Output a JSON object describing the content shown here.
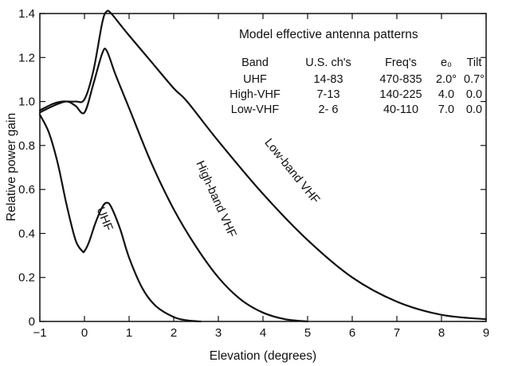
{
  "chart_data": {
    "type": "line",
    "title": "",
    "xlabel": "Elevation (degrees)",
    "ylabel": "Relative power gain",
    "xlim": [
      -1,
      9
    ],
    "ylim": [
      0,
      1.4
    ],
    "grid": false,
    "x_ticks": [
      "-1",
      "0",
      "1",
      "2",
      "3",
      "4",
      "5",
      "6",
      "7",
      "8",
      "9"
    ],
    "y_ticks": [
      "0",
      "0.2",
      "0.4",
      "0.6",
      "0.8",
      "1.0",
      "1.2",
      "1.4"
    ],
    "series": [
      {
        "name": "UHF",
        "label": "UHF",
        "x": [
          -1,
          -0.8,
          -0.6,
          -0.4,
          -0.2,
          -0.05,
          0,
          0.1,
          0.25,
          0.4,
          0.5,
          0.6,
          0.8,
          1.0,
          1.3,
          1.6,
          2.0,
          2.3,
          2.6
        ],
        "y": [
          0.94,
          0.86,
          0.72,
          0.53,
          0.37,
          0.32,
          0.32,
          0.36,
          0.45,
          0.52,
          0.54,
          0.52,
          0.42,
          0.29,
          0.15,
          0.07,
          0.02,
          0.005,
          0
        ]
      },
      {
        "name": "High-band VHF",
        "label": "High-band VHF",
        "x": [
          -1,
          -0.7,
          -0.4,
          -0.2,
          0,
          0.2,
          0.4,
          0.5,
          0.7,
          1.0,
          1.5,
          2.0,
          2.5,
          3.0,
          3.5,
          4.0,
          4.5,
          5.0
        ],
        "y": [
          0.95,
          0.98,
          1.0,
          0.98,
          0.95,
          1.08,
          1.22,
          1.23,
          1.12,
          0.97,
          0.72,
          0.51,
          0.34,
          0.2,
          0.1,
          0.04,
          0.01,
          0
        ]
      },
      {
        "name": "Low-band VHF",
        "label": "Low-band VHF",
        "x": [
          -1,
          -0.7,
          -0.5,
          -0.2,
          0,
          0.2,
          0.4,
          0.5,
          0.6,
          0.8,
          1.0,
          1.5,
          2.0,
          2.3,
          3.0,
          4.0,
          5.0,
          6.0,
          7.0,
          8.0,
          9.0
        ],
        "y": [
          0.96,
          0.99,
          1.0,
          1.0,
          1.01,
          1.14,
          1.36,
          1.41,
          1.4,
          1.35,
          1.3,
          1.18,
          1.06,
          1.0,
          0.82,
          0.58,
          0.37,
          0.2,
          0.09,
          0.03,
          0.01
        ]
      }
    ],
    "table": {
      "title": "Model effective antenna patterns",
      "headers": [
        "Band",
        "U.S. ch's",
        "Freq's",
        "e₀",
        "Tilt"
      ],
      "rows": [
        [
          "UHF",
          "14-83",
          "470-835",
          "2.0°",
          "0.7°"
        ],
        [
          "High-VHF",
          "7-13",
          "140-225",
          "4.0",
          "0.0"
        ],
        [
          "Low-VHF",
          "2- 6",
          "40-110",
          "7.0",
          "0.0"
        ]
      ]
    }
  }
}
